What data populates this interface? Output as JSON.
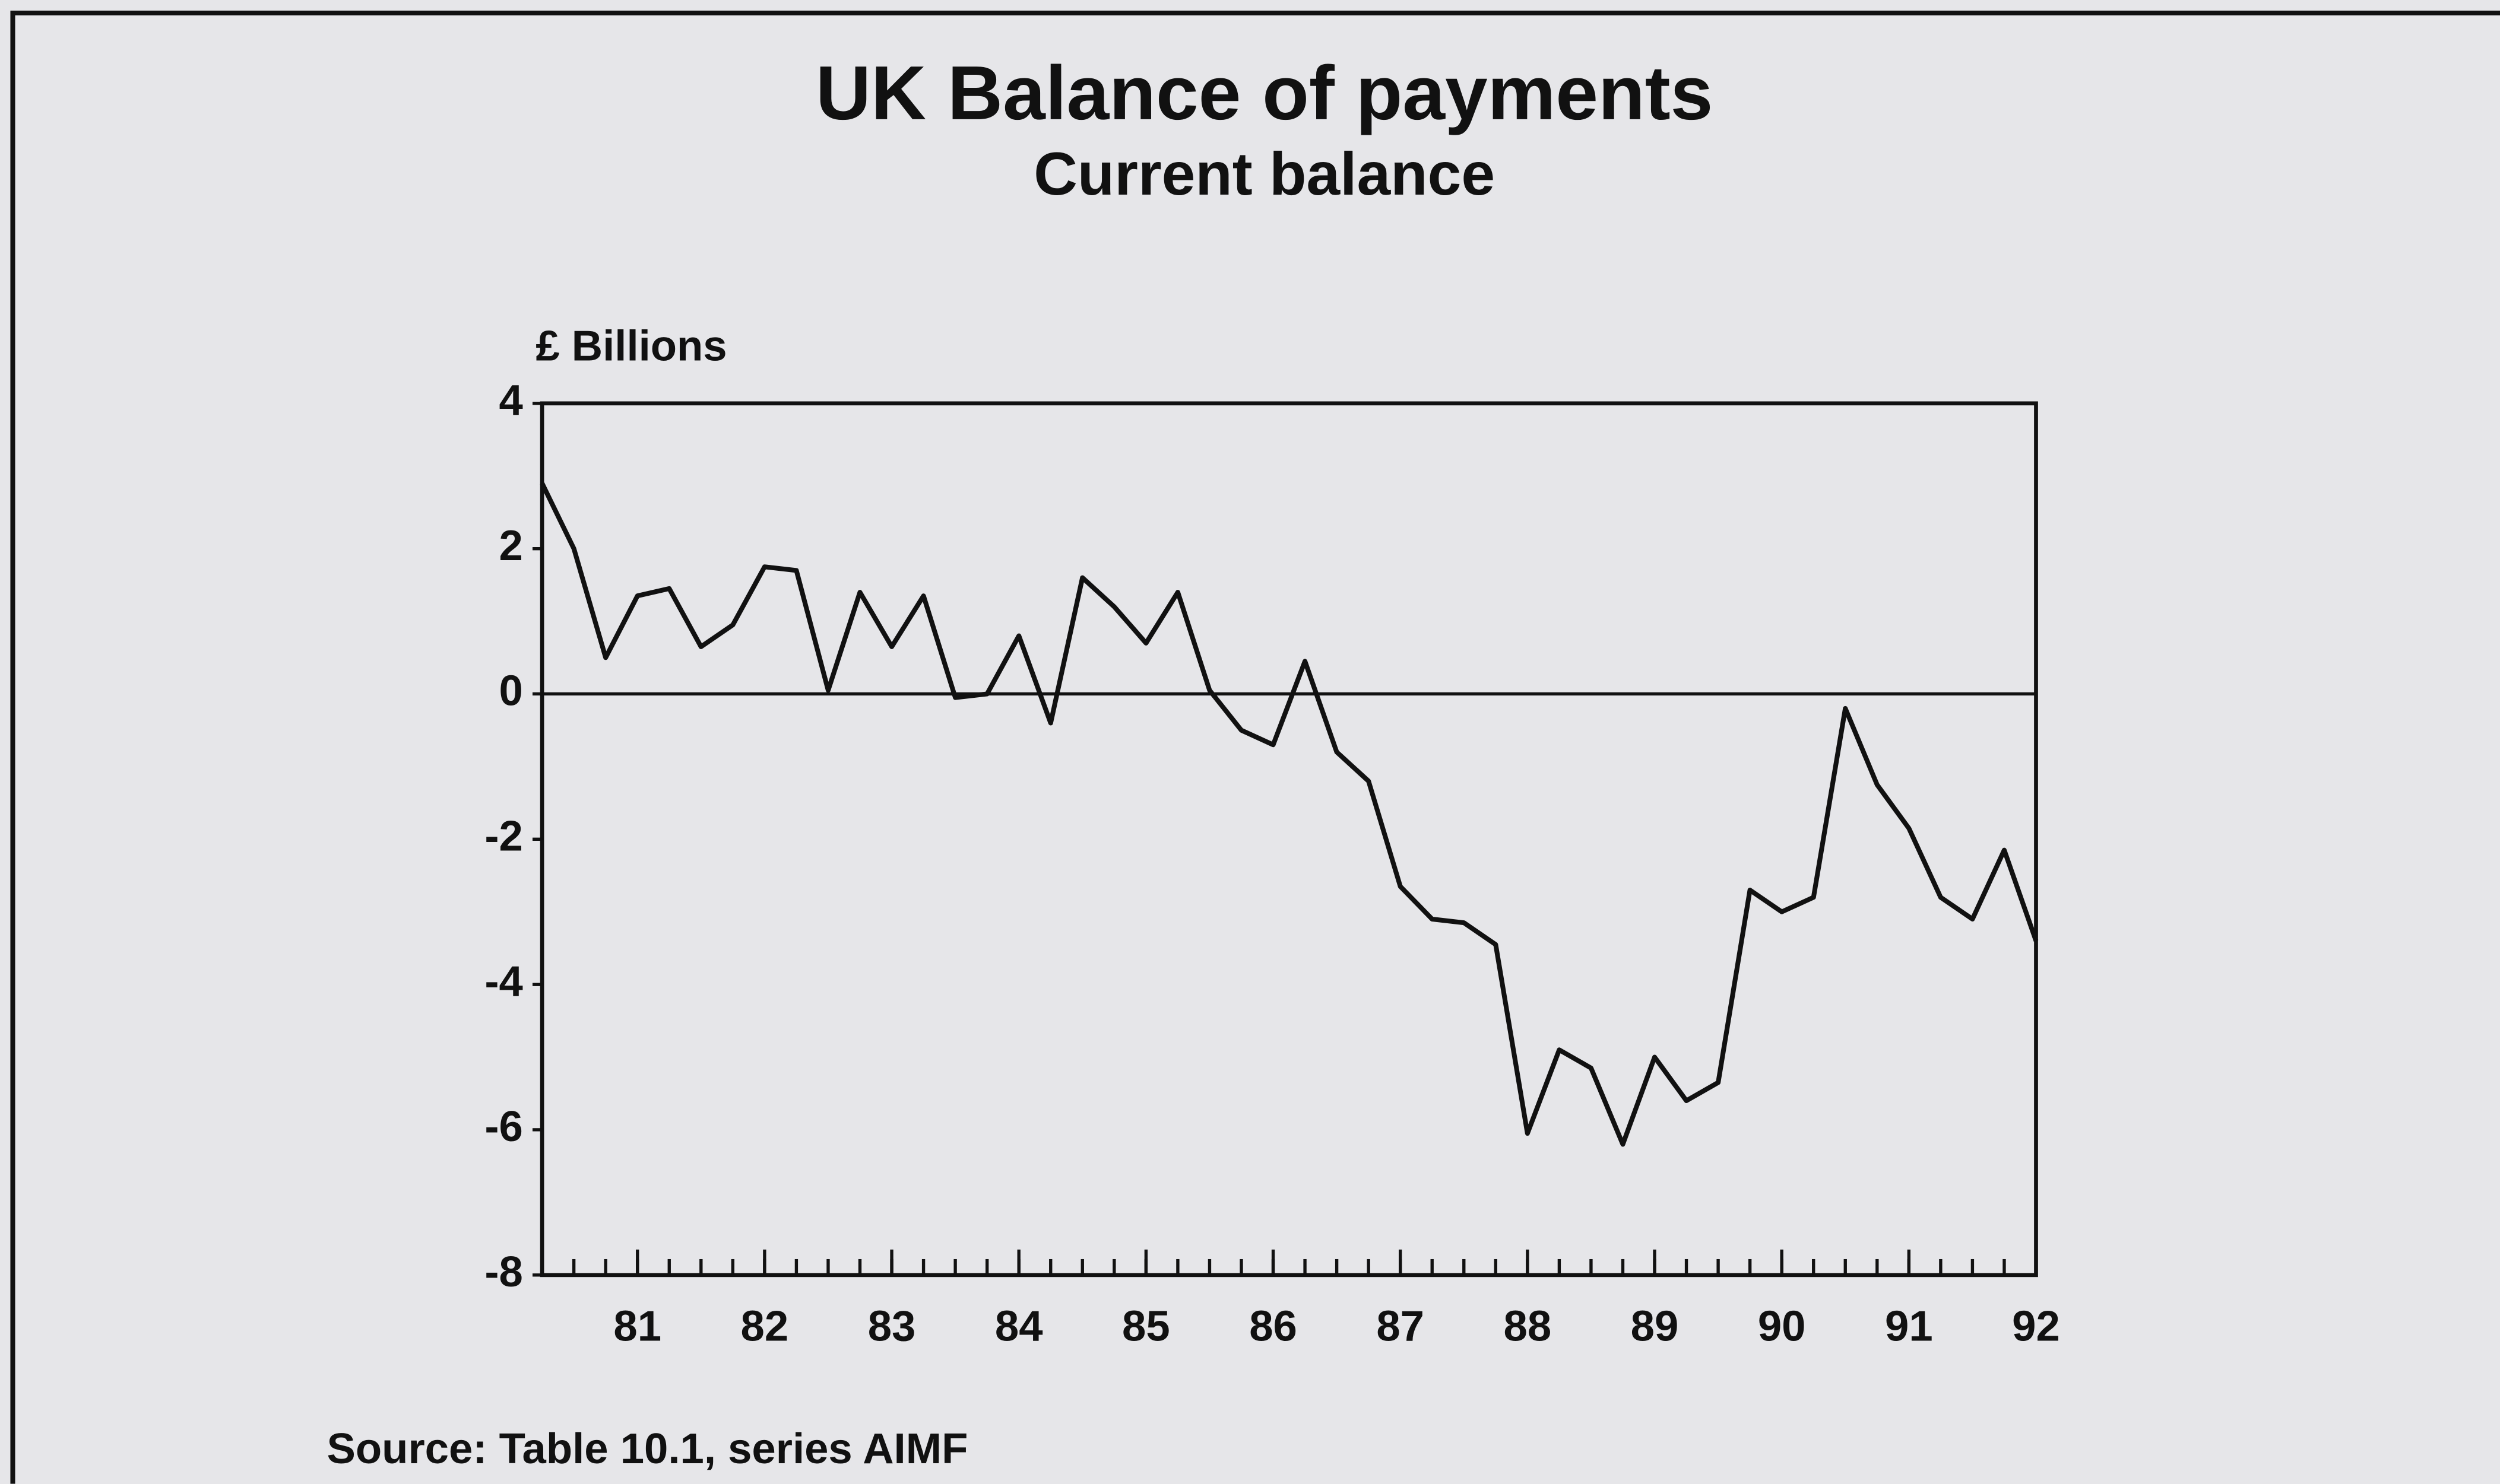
{
  "chart_data": {
    "type": "line",
    "title": "UK Balance of payments",
    "subtitle": "Current balance",
    "y_label": "£ Billions",
    "source": "Source: Table 10.1, series AIMF",
    "x": [
      80.25,
      80.5,
      80.75,
      81,
      81.25,
      81.5,
      81.75,
      82,
      82.25,
      82.5,
      82.75,
      83,
      83.25,
      83.5,
      83.75,
      84,
      84.25,
      84.5,
      84.75,
      85,
      85.25,
      85.5,
      85.75,
      86,
      86.25,
      86.5,
      86.75,
      87,
      87.25,
      87.5,
      87.75,
      88,
      88.25,
      88.5,
      88.75,
      89,
      89.25,
      89.5,
      89.75,
      90,
      90.25,
      90.5,
      90.75,
      91,
      91.25,
      91.5,
      91.75,
      92
    ],
    "series": [
      {
        "color": "#111111",
        "values": [
          2.9,
          2.0,
          0.5,
          1.35,
          1.45,
          0.65,
          0.95,
          1.75,
          1.7,
          0.05,
          1.4,
          0.65,
          1.35,
          -0.05,
          0.0,
          0.8,
          -0.4,
          1.6,
          1.2,
          0.7,
          1.4,
          0.05,
          -0.5,
          -0.7,
          0.45,
          -0.8,
          -1.2,
          -2.65,
          -3.1,
          -3.15,
          -3.45,
          -6.05,
          -4.9,
          -5.15,
          -6.2,
          -5.0,
          -5.6,
          -5.35,
          -2.7,
          -3.0,
          -2.8,
          -0.2,
          -1.25,
          -1.85,
          -2.8,
          -3.1,
          -2.15,
          -3.4
        ]
      }
    ],
    "xlim": [
      80.25,
      92
    ],
    "xticks": [
      81,
      82,
      83,
      84,
      85,
      86,
      87,
      88,
      89,
      90,
      91,
      92
    ],
    "ylim": [
      -8,
      4
    ],
    "yticks": [
      4,
      2,
      0,
      -2,
      -4,
      -6,
      -8
    ]
  }
}
